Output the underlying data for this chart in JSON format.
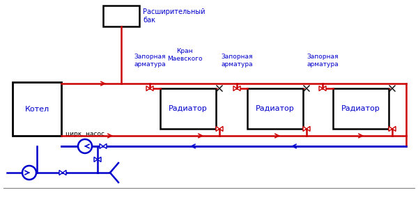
{
  "bg_color": "#ffffff",
  "red": "#cc0000",
  "blue": "#0000cc",
  "black": "#000000",
  "labels": {
    "expansion_tank": "Расширительный\nбак",
    "boiler": "Котел",
    "circ_pump": "цирк. насос",
    "radiator": "Радиатор",
    "valve_label": "Запорная\nарматура",
    "maevsky": "Кран\nМаевского"
  },
  "figsize": [
    6.0,
    2.93
  ],
  "dpi": 100
}
